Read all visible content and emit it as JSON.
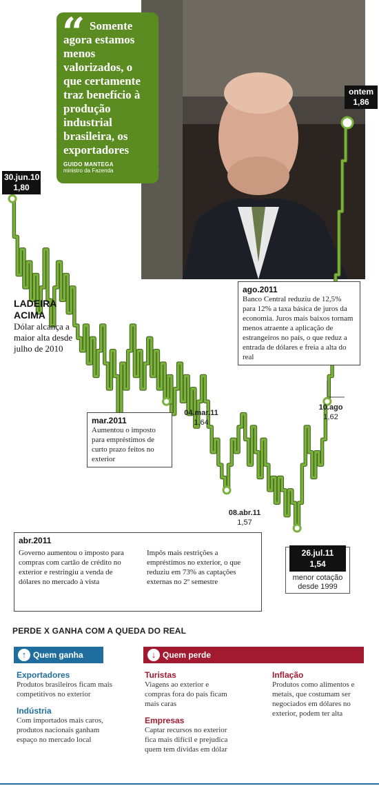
{
  "chart_data": {
    "type": "line",
    "title": "LADEIRA ACIMA",
    "subtitle": "Dólar alcança a maior alta desde julho de 2010",
    "xlabel": "",
    "ylabel": "",
    "ylim": [
      1.5,
      1.9
    ],
    "series": [
      {
        "values": [
          1.8,
          1.77,
          1.74,
          1.76,
          1.73,
          1.75,
          1.72,
          1.74,
          1.71,
          1.73,
          1.76,
          1.72,
          1.7,
          1.73,
          1.75,
          1.72,
          1.74,
          1.71,
          1.73,
          1.7,
          1.69,
          1.68,
          1.7,
          1.67,
          1.69,
          1.66,
          1.68,
          1.7,
          1.67,
          1.65,
          1.68,
          1.66,
          1.63,
          1.67,
          1.65,
          1.68,
          1.7,
          1.66,
          1.68,
          1.65,
          1.67,
          1.69,
          1.66,
          1.68,
          1.65,
          1.67,
          1.64,
          1.66,
          1.63,
          1.65,
          1.67,
          1.64,
          1.66,
          1.63,
          1.65,
          1.62,
          1.64,
          1.66,
          1.64,
          1.62,
          1.6,
          1.61,
          1.59,
          1.58,
          1.57,
          1.59,
          1.61,
          1.6,
          1.62,
          1.63,
          1.61,
          1.59,
          1.62,
          1.6,
          1.58,
          1.61,
          1.59,
          1.57,
          1.58,
          1.56,
          1.58,
          1.57,
          1.55,
          1.57,
          1.56,
          1.54,
          1.56,
          1.59,
          1.62,
          1.6,
          1.58,
          1.6,
          1.59,
          1.61,
          1.64,
          1.66,
          1.7,
          1.74,
          1.79,
          1.83,
          1.86
        ]
      }
    ],
    "annotations": [
      {
        "date": "30.jun.10",
        "value": "1,80"
      },
      {
        "date": "04.mar.11",
        "value": "1,64"
      },
      {
        "date": "08.abr.11",
        "value": "1,57"
      },
      {
        "date": "26.jul.11",
        "value": "1,54",
        "note": "menor cotação desde 1999"
      },
      {
        "date": "10.ago",
        "value": "1,62"
      },
      {
        "date": "ontem",
        "value": "1,86"
      }
    ]
  },
  "quote": {
    "text": "Somente agora estamos menos valorizados, o que certamente traz benefício à produção industrial brasileira, os exportadores",
    "author": "GUIDO MANTEGA",
    "role": "ministro da Fazenda"
  },
  "labels": {
    "start_date": "30.jun.10",
    "start_value": "1,80",
    "end_date": "ontem",
    "end_value": "1,86",
    "mar_date": "04.mar.11",
    "mar_value": "1,64",
    "abr_date": "08.abr.11",
    "abr_value": "1,57",
    "jul_date": "26.jul.11",
    "jul_value": "1,54",
    "jul_note": "menor cotação desde 1999",
    "ago_date": "10.ago",
    "ago_value": "1,62"
  },
  "title_block": {
    "title": "LADEIRA ACIMA",
    "subtitle": "Dólar alcança a maior alta desde julho de 2010"
  },
  "notes": {
    "ago_title": "ago.2011",
    "ago_text": "Banco Central reduziu de 12,5% para 12% a taxa básica de juros da economia. Juros mais baixos tornam menos atraente a aplicação de estrangeiros no país, o que reduz a entrada de dólares e freia a alta do real",
    "mar_title": "mar.2011",
    "mar_text": "Aumentou o imposto para empréstimos de curto prazo feitos no exterior",
    "abr_title": "abr.2011",
    "abr_text_1": "Governo aumentou o imposto para compras com cartão de crédito no exterior e restringiu a venda de dólares no mercado à vista",
    "abr_text_2": "Impôs mais restrições a empréstimos no exterior, o que reduziu em 73% as captações externas no 2º semestre"
  },
  "section": {
    "title": "PERDE X GANHA COM A QUEDA DO REAL",
    "win_label": "Quem ganha",
    "lose_label": "Quem perde",
    "win_color": "#1f6e9e",
    "lose_color": "#a21a30"
  },
  "winners": [
    {
      "title": "Exportadores",
      "text": "Produtos brasileiros ficam mais competitivos no exterior"
    },
    {
      "title": "Indústria",
      "text": "Com importados mais caros, produtos nacionais ganham espaço no mercado local"
    }
  ],
  "losers_1": [
    {
      "title": "Turistas",
      "text": "Viagens ao exterior e compras fora do país ficam mais caras"
    },
    {
      "title": "Empresas",
      "text": "Captar recursos no exterior fica mais difícil e prejudica quem tem dívidas em dólar"
    }
  ],
  "losers_2": [
    {
      "title": "Inflação",
      "text": "Produtos como alimentos e metais, que costumam ser negociados em dólares no exterior, podem ter alta"
    }
  ],
  "colors": {
    "line": "#7ab03c",
    "quote_bg": "#5a8c22"
  },
  "icons": {
    "quote": "quote-mark-icon",
    "up": "arrow-up-icon",
    "down": "arrow-down-icon"
  }
}
